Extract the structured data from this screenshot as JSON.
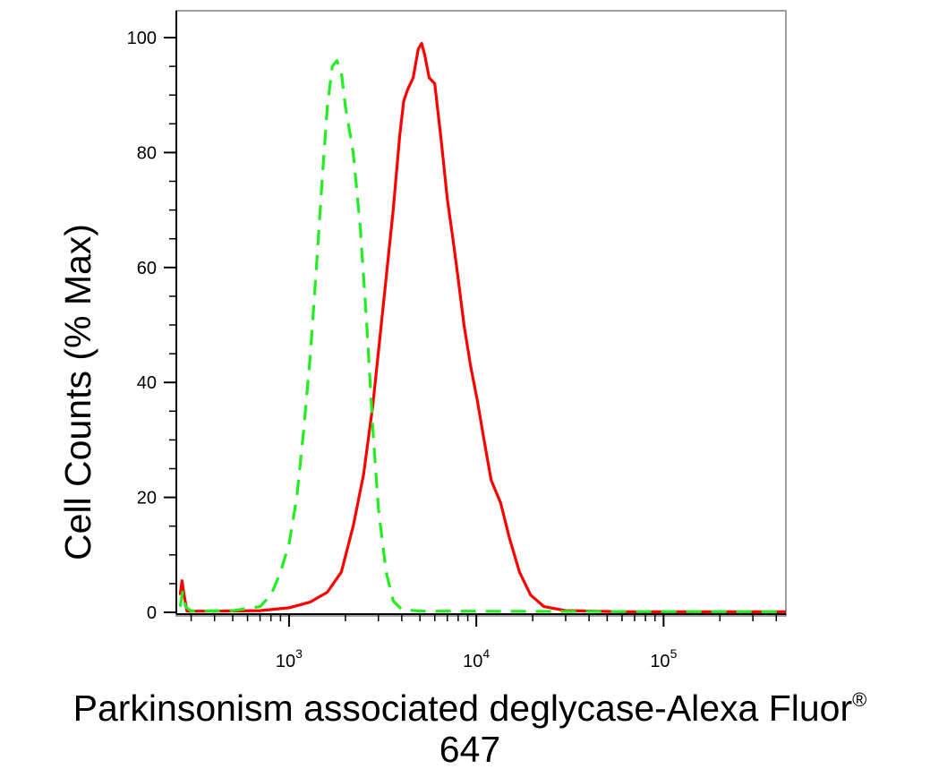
{
  "chart_data": {
    "type": "line",
    "title": "",
    "xscale": "log",
    "xlim": [
      250,
      450000
    ],
    "ylim": [
      0,
      100
    ],
    "ylabel": "Cell Counts (% Max)",
    "xlabel_line1": "Parkinsonism associated deglycase-Alexa Fluor",
    "xlabel_sup": "®",
    "xlabel_line2": "647",
    "y_ticks": [
      {
        "value": 0,
        "label": "0"
      },
      {
        "value": 20,
        "label": "20"
      },
      {
        "value": 40,
        "label": "40"
      },
      {
        "value": 60,
        "label": "60"
      },
      {
        "value": 80,
        "label": "80"
      },
      {
        "value": 100,
        "label": "100"
      }
    ],
    "x_ticks": [
      {
        "value": 1000,
        "base": "10",
        "exp": "3"
      },
      {
        "value": 10000,
        "base": "10",
        "exp": "4"
      },
      {
        "value": 100000,
        "base": "10",
        "exp": "5"
      }
    ],
    "grid": false,
    "series": [
      {
        "color": "#ff0000",
        "style": "solid",
        "points": [
          [
            262,
            3
          ],
          [
            268,
            5.5
          ],
          [
            275,
            3
          ],
          [
            285,
            0.2
          ],
          [
            400,
            0.2
          ],
          [
            700,
            0.3
          ],
          [
            1000,
            0.8
          ],
          [
            1300,
            1.8
          ],
          [
            1600,
            3.5
          ],
          [
            1900,
            7
          ],
          [
            2200,
            15
          ],
          [
            2500,
            24
          ],
          [
            2800,
            36
          ],
          [
            3200,
            54
          ],
          [
            3600,
            70
          ],
          [
            3900,
            83
          ],
          [
            4100,
            89
          ],
          [
            4300,
            91
          ],
          [
            4600,
            93
          ],
          [
            4900,
            98
          ],
          [
            5100,
            99
          ],
          [
            5300,
            97
          ],
          [
            5600,
            93
          ],
          [
            6000,
            92
          ],
          [
            6500,
            82
          ],
          [
            7000,
            72
          ],
          [
            7500,
            65
          ],
          [
            8000,
            58
          ],
          [
            8600,
            50
          ],
          [
            9300,
            43
          ],
          [
            10100,
            37
          ],
          [
            11000,
            30
          ],
          [
            12000,
            23
          ],
          [
            13500,
            19
          ],
          [
            15000,
            13
          ],
          [
            17000,
            7
          ],
          [
            19500,
            3
          ],
          [
            23000,
            1
          ],
          [
            30000,
            0.3
          ],
          [
            60000,
            0.1
          ],
          [
            450000,
            0.1
          ]
        ]
      },
      {
        "color": "#22ee22",
        "style": "dashed",
        "points": [
          [
            262,
            1
          ],
          [
            270,
            3.5
          ],
          [
            280,
            1
          ],
          [
            300,
            0.2
          ],
          [
            500,
            0.3
          ],
          [
            700,
            1
          ],
          [
            800,
            3
          ],
          [
            900,
            7
          ],
          [
            1000,
            12
          ],
          [
            1100,
            20
          ],
          [
            1200,
            32
          ],
          [
            1300,
            45
          ],
          [
            1400,
            60
          ],
          [
            1500,
            75
          ],
          [
            1600,
            88
          ],
          [
            1700,
            95
          ],
          [
            1800,
            96
          ],
          [
            1900,
            94
          ],
          [
            2000,
            88
          ],
          [
            2200,
            80
          ],
          [
            2400,
            67
          ],
          [
            2600,
            50
          ],
          [
            2800,
            32
          ],
          [
            3000,
            18
          ],
          [
            3300,
            7
          ],
          [
            3600,
            2
          ],
          [
            4000,
            0.5
          ],
          [
            5000,
            0.2
          ],
          [
            450000,
            0.1
          ]
        ]
      }
    ]
  }
}
